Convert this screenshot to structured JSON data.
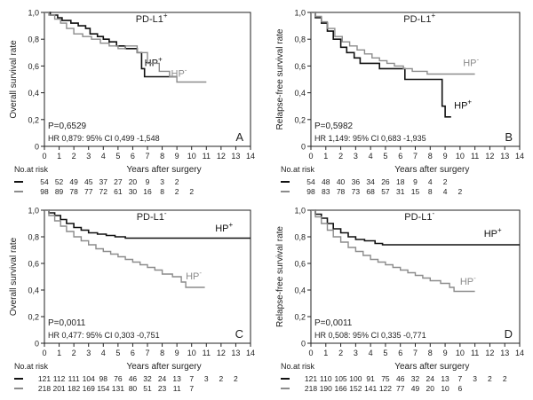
{
  "colors": {
    "hp_pos": "#111111",
    "hp_neg": "#8c8c8c",
    "axis": "#222222",
    "text": "#222222"
  },
  "chart_data": [
    {
      "type": "line",
      "panel": "A",
      "title": "PD-L1",
      "title_sup": "+",
      "ylabel": "Overall survival rate",
      "xlabel": "Years after surgery",
      "xlim": [
        0,
        14
      ],
      "ylim": [
        0,
        1.0
      ],
      "x_ticks": [
        "0",
        "1",
        "2",
        "3",
        "4",
        "5",
        "6",
        "7",
        "8",
        "9",
        "10",
        "11",
        "12",
        "13",
        "14"
      ],
      "y_ticks": [
        "0",
        "0,2",
        "0,4",
        "0,6",
        "0,8",
        "1,0"
      ],
      "p_value": "P=0,6529",
      "hr_text": "HR 0,879: 95% CI 0,499 -1,548",
      "risk_title": "No.at risk",
      "series": [
        {
          "name": "HP",
          "sup": "+",
          "label_at": [
            6.8,
            0.6
          ],
          "steps": [
            [
              0,
              1.0
            ],
            [
              0.4,
              0.98
            ],
            [
              0.9,
              0.96
            ],
            [
              1.2,
              0.94
            ],
            [
              1.8,
              0.92
            ],
            [
              2.3,
              0.9
            ],
            [
              2.8,
              0.88
            ],
            [
              3.1,
              0.84
            ],
            [
              3.6,
              0.82
            ],
            [
              4.0,
              0.8
            ],
            [
              4.4,
              0.78
            ],
            [
              4.9,
              0.75
            ],
            [
              5.5,
              0.73
            ],
            [
              6.3,
              0.7
            ],
            [
              6.6,
              0.58
            ],
            [
              6.8,
              0.52
            ],
            [
              9.0,
              0.52
            ]
          ],
          "at_risk": [
            "54",
            "52",
            "49",
            "45",
            "37",
            "27",
            "20",
            "9",
            "3",
            "2"
          ]
        },
        {
          "name": "HP",
          "sup": "-",
          "label_at": [
            8.6,
            0.52
          ],
          "steps": [
            [
              0,
              1.0
            ],
            [
              0.3,
              0.98
            ],
            [
              0.7,
              0.95
            ],
            [
              1.1,
              0.92
            ],
            [
              1.5,
              0.88
            ],
            [
              2.0,
              0.84
            ],
            [
              2.6,
              0.82
            ],
            [
              3.2,
              0.8
            ],
            [
              3.8,
              0.77
            ],
            [
              4.4,
              0.75
            ],
            [
              5.0,
              0.73
            ],
            [
              5.5,
              0.75
            ],
            [
              6.3,
              0.7
            ],
            [
              7.0,
              0.62
            ],
            [
              7.8,
              0.56
            ],
            [
              8.5,
              0.52
            ],
            [
              9.0,
              0.48
            ],
            [
              11.0,
              0.48
            ]
          ],
          "at_risk": [
            "98",
            "89",
            "78",
            "77",
            "72",
            "61",
            "30",
            "16",
            "8",
            "2",
            "2"
          ]
        }
      ]
    },
    {
      "type": "line",
      "panel": "B",
      "title": "PD-L1",
      "title_sup": "+",
      "ylabel": "Relapse-free survival rate",
      "xlabel": "Years after surgery",
      "xlim": [
        0,
        14
      ],
      "ylim": [
        0,
        1.0
      ],
      "x_ticks": [
        "0",
        "1",
        "2",
        "3",
        "4",
        "5",
        "6",
        "7",
        "8",
        "9",
        "10",
        "11",
        "12",
        "13",
        "14"
      ],
      "y_ticks": [
        "0",
        "0,2",
        "0,4",
        "0,6",
        "0,8",
        "1,0"
      ],
      "p_value": "P=0,5982",
      "hr_text": "HR 1,149: 95% CI 0,683 -1,935",
      "risk_title": "No.at risk",
      "series": [
        {
          "name": "HP",
          "sup": "+",
          "label_at": [
            9.6,
            0.28
          ],
          "steps": [
            [
              0,
              1.0
            ],
            [
              0.3,
              0.96
            ],
            [
              0.7,
              0.92
            ],
            [
              1.1,
              0.86
            ],
            [
              1.5,
              0.8
            ],
            [
              2.0,
              0.74
            ],
            [
              2.4,
              0.7
            ],
            [
              2.9,
              0.66
            ],
            [
              3.3,
              0.62
            ],
            [
              4.0,
              0.62
            ],
            [
              4.6,
              0.58
            ],
            [
              6.3,
              0.5
            ],
            [
              8.8,
              0.5
            ],
            [
              8.8,
              0.3
            ],
            [
              9.0,
              0.22
            ],
            [
              9.4,
              0.22
            ]
          ],
          "at_risk": [
            "54",
            "48",
            "40",
            "36",
            "34",
            "26",
            "18",
            "9",
            "4",
            "2"
          ]
        },
        {
          "name": "HP",
          "sup": "-",
          "label_at": [
            10.2,
            0.6
          ],
          "steps": [
            [
              0,
              1.0
            ],
            [
              0.3,
              0.97
            ],
            [
              0.7,
              0.93
            ],
            [
              1.1,
              0.88
            ],
            [
              1.6,
              0.82
            ],
            [
              2.1,
              0.78
            ],
            [
              2.6,
              0.75
            ],
            [
              3.1,
              0.72
            ],
            [
              3.6,
              0.69
            ],
            [
              4.1,
              0.66
            ],
            [
              4.6,
              0.64
            ],
            [
              5.1,
              0.62
            ],
            [
              5.6,
              0.6
            ],
            [
              6.2,
              0.58
            ],
            [
              6.8,
              0.56
            ],
            [
              7.8,
              0.54
            ],
            [
              11.0,
              0.54
            ]
          ],
          "at_risk": [
            "98",
            "83",
            "78",
            "73",
            "68",
            "57",
            "31",
            "15",
            "8",
            "4",
            "2"
          ]
        }
      ]
    },
    {
      "type": "line",
      "panel": "C",
      "title": "PD-L1",
      "title_sup": "-",
      "ylabel": "Overall survival rate",
      "xlabel": "Years after surgery",
      "xlim": [
        0,
        14
      ],
      "ylim": [
        0,
        1.0
      ],
      "x_ticks": [
        "0",
        "1",
        "2",
        "3",
        "4",
        "5",
        "6",
        "7",
        "8",
        "9",
        "10",
        "11",
        "12",
        "13",
        "14"
      ],
      "y_ticks": [
        "0",
        "0,2",
        "0,4",
        "0,6",
        "0,8",
        "1,0"
      ],
      "p_value": "P=0,0011",
      "hr_text": "HR 0,477: 95% CI 0,303 -0,751",
      "risk_title": "No.at risk",
      "series": [
        {
          "name": "HP",
          "sup": "+",
          "label_at": [
            11.6,
            0.84
          ],
          "steps": [
            [
              0,
              1.0
            ],
            [
              0.3,
              0.98
            ],
            [
              0.7,
              0.96
            ],
            [
              1.1,
              0.93
            ],
            [
              1.5,
              0.9
            ],
            [
              2.0,
              0.87
            ],
            [
              2.5,
              0.85
            ],
            [
              3.0,
              0.83
            ],
            [
              3.6,
              0.82
            ],
            [
              4.2,
              0.81
            ],
            [
              4.8,
              0.8
            ],
            [
              5.5,
              0.79
            ],
            [
              14,
              0.79
            ]
          ],
          "at_risk": [
            "121",
            "112",
            "111",
            "104",
            "98",
            "76",
            "46",
            "32",
            "24",
            "13",
            "7",
            "3",
            "2",
            "2"
          ]
        },
        {
          "name": "HP",
          "sup": "-",
          "label_at": [
            9.6,
            0.48
          ],
          "steps": [
            [
              0,
              1.0
            ],
            [
              0.3,
              0.96
            ],
            [
              0.7,
              0.92
            ],
            [
              1.1,
              0.88
            ],
            [
              1.5,
              0.84
            ],
            [
              2.0,
              0.8
            ],
            [
              2.5,
              0.77
            ],
            [
              3.0,
              0.74
            ],
            [
              3.5,
              0.71
            ],
            [
              4.0,
              0.69
            ],
            [
              4.5,
              0.67
            ],
            [
              5.0,
              0.65
            ],
            [
              5.5,
              0.63
            ],
            [
              6.0,
              0.61
            ],
            [
              6.5,
              0.59
            ],
            [
              7.0,
              0.57
            ],
            [
              7.5,
              0.55
            ],
            [
              8.0,
              0.52
            ],
            [
              8.7,
              0.5
            ],
            [
              9.3,
              0.46
            ],
            [
              9.6,
              0.42
            ],
            [
              10.9,
              0.42
            ]
          ],
          "at_risk": [
            "218",
            "201",
            "182",
            "169",
            "154",
            "131",
            "80",
            "51",
            "23",
            "11",
            "7"
          ]
        }
      ]
    },
    {
      "type": "line",
      "panel": "D",
      "title": "PD-L1",
      "title_sup": "-",
      "ylabel": "Relapse-free survival rate",
      "xlabel": "Years after surgery",
      "xlim": [
        0,
        14
      ],
      "ylim": [
        0,
        1.0
      ],
      "x_ticks": [
        "0",
        "1",
        "2",
        "3",
        "4",
        "5",
        "6",
        "7",
        "8",
        "9",
        "10",
        "11",
        "12",
        "13",
        "14"
      ],
      "y_ticks": [
        "0",
        "0,2",
        "0,4",
        "0,6",
        "0,8",
        "1,0"
      ],
      "p_value": "P=0,0011",
      "hr_text": "HR 0,508: 95% CI 0,335 -0,771",
      "risk_title": "No.at risk",
      "series": [
        {
          "name": "HP",
          "sup": "+",
          "label_at": [
            11.6,
            0.8
          ],
          "steps": [
            [
              0,
              1.0
            ],
            [
              0.3,
              0.97
            ],
            [
              0.7,
              0.94
            ],
            [
              1.1,
              0.9
            ],
            [
              1.5,
              0.86
            ],
            [
              2.0,
              0.83
            ],
            [
              2.5,
              0.8
            ],
            [
              3.0,
              0.78
            ],
            [
              3.6,
              0.77
            ],
            [
              4.3,
              0.75
            ],
            [
              4.8,
              0.74
            ],
            [
              14,
              0.74
            ]
          ],
          "at_risk": [
            "121",
            "110",
            "105",
            "100",
            "91",
            "75",
            "46",
            "32",
            "24",
            "13",
            "7",
            "3",
            "2",
            "2"
          ]
        },
        {
          "name": "HP",
          "sup": "-",
          "label_at": [
            10.0,
            0.44
          ],
          "steps": [
            [
              0,
              1.0
            ],
            [
              0.3,
              0.95
            ],
            [
              0.7,
              0.9
            ],
            [
              1.1,
              0.85
            ],
            [
              1.5,
              0.8
            ],
            [
              2.0,
              0.76
            ],
            [
              2.5,
              0.72
            ],
            [
              3.0,
              0.69
            ],
            [
              3.5,
              0.66
            ],
            [
              4.0,
              0.63
            ],
            [
              4.5,
              0.61
            ],
            [
              5.0,
              0.59
            ],
            [
              5.5,
              0.57
            ],
            [
              6.0,
              0.55
            ],
            [
              6.5,
              0.53
            ],
            [
              7.0,
              0.51
            ],
            [
              7.5,
              0.49
            ],
            [
              8.0,
              0.47
            ],
            [
              8.7,
              0.45
            ],
            [
              9.3,
              0.42
            ],
            [
              9.6,
              0.39
            ],
            [
              11.0,
              0.39
            ]
          ],
          "at_risk": [
            "218",
            "190",
            "166",
            "152",
            "141",
            "122",
            "77",
            "49",
            "20",
            "10",
            "6"
          ]
        }
      ]
    }
  ]
}
